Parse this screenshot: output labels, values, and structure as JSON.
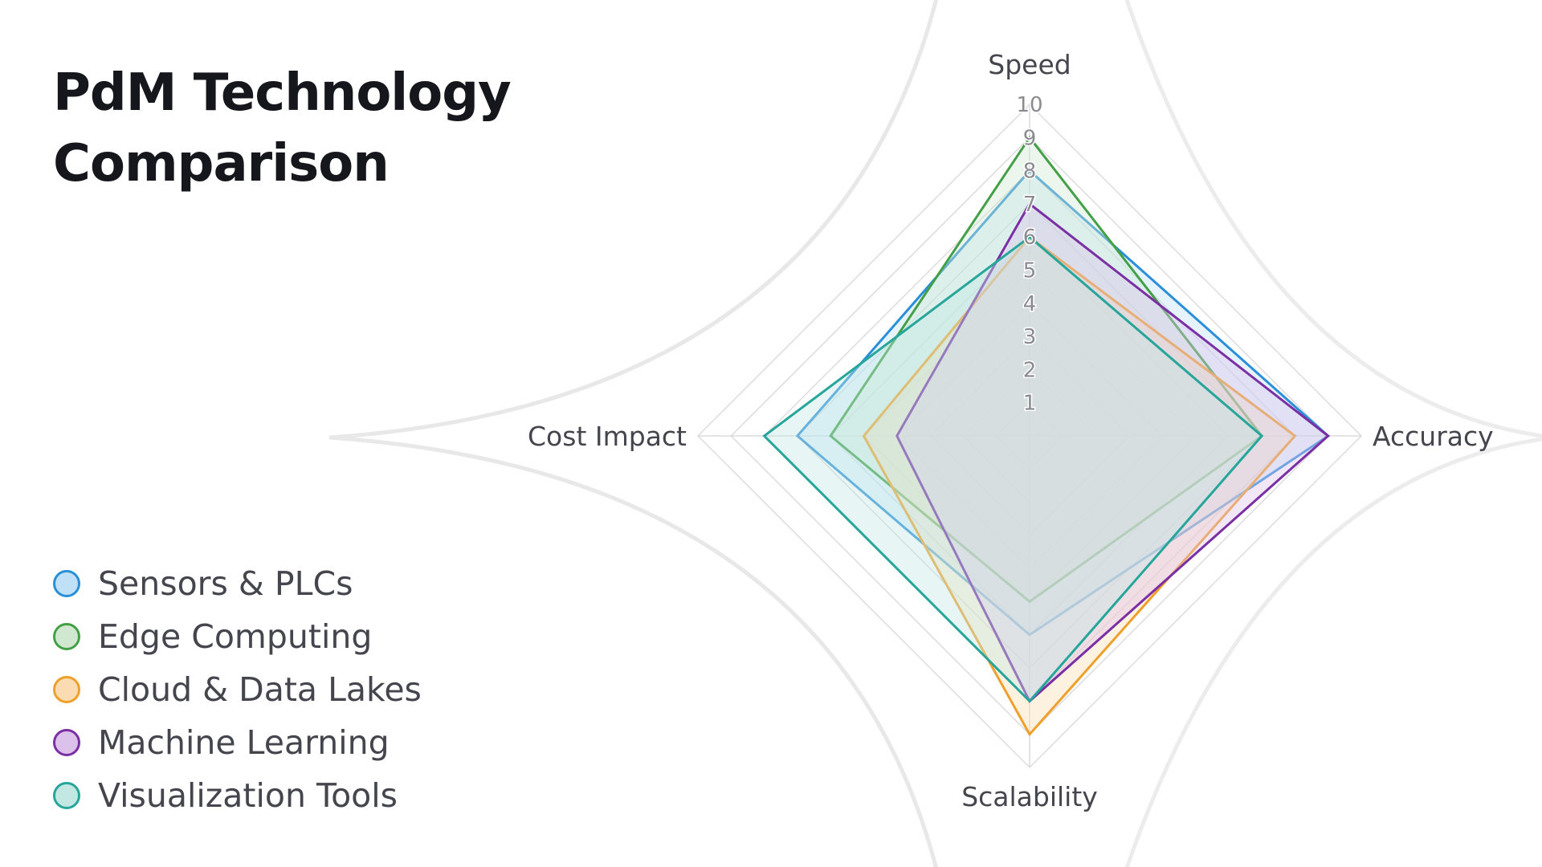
{
  "title": "PdM Technology\nComparison",
  "chart_data": {
    "type": "radar",
    "axes": [
      "Speed",
      "Accuracy",
      "Scalability",
      "Cost Impact"
    ],
    "rlim": [
      0,
      10
    ],
    "ticks": [
      "1",
      "2",
      "3",
      "4",
      "5",
      "6",
      "7",
      "8",
      "9",
      "10"
    ],
    "grid": true,
    "legend_position": "bottom-left",
    "series": [
      {
        "name": "Sensors & PLCs",
        "values": [
          8,
          9,
          6,
          7
        ],
        "color": "#2a8fd9",
        "fill": "#bfe0f7"
      },
      {
        "name": "Edge Computing",
        "values": [
          9,
          7,
          5,
          6
        ],
        "color": "#43a047",
        "fill": "#cfe8cf"
      },
      {
        "name": "Cloud & Data Lakes",
        "values": [
          6,
          8,
          9,
          5
        ],
        "color": "#f0a02a",
        "fill": "#fbdcb2"
      },
      {
        "name": "Machine Learning",
        "values": [
          7,
          9,
          8,
          4
        ],
        "color": "#7b2fa4",
        "fill": "#dcc2ea"
      },
      {
        "name": "Visualization Tools",
        "values": [
          6,
          7,
          8,
          8
        ],
        "color": "#26a69a",
        "fill": "#c3e8e3"
      }
    ]
  }
}
